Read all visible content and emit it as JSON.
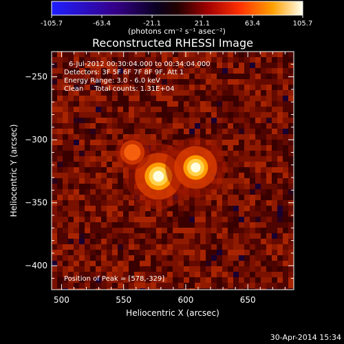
{
  "chart_data": {
    "type": "heatmap",
    "title": "Reconstructed RHESSI Image",
    "xlabel": "Heliocentric X (arcsec)",
    "ylabel": "Heliocentric Y (arcsec)",
    "xlim": [
      492,
      687
    ],
    "ylim": [
      -419,
      -230
    ],
    "xticks": [
      500,
      550,
      600,
      650
    ],
    "yticks": [
      -250,
      -300,
      -350,
      -400
    ],
    "annotations": [
      "6-Jul-2012 00:30:04.000 to 00:34:04.000",
      "Detectors: 3F 5F 6F 7F 8F 9F, Att 1",
      "Energy Range: 3.0 - 6.0 keV",
      "Clean     Total counts: 1.31E+04"
    ],
    "peak_label": "Position of Peak = [578,-329]",
    "peak": [
      578,
      -329
    ],
    "sources": [
      {
        "x": 578,
        "y": -329,
        "level": 105.7
      },
      {
        "x": 608,
        "y": -322,
        "level": 95
      },
      {
        "x": 557,
        "y": -310,
        "level": 45
      }
    ],
    "colorbar": {
      "range": [
        -105.7,
        105.7
      ],
      "ticks": [
        "-105.7",
        "-63.4",
        "-21.1",
        "21.1",
        "63.4",
        "105.7"
      ],
      "unit_label": "(photons cm⁻² s⁻¹ asec⁻²)",
      "colors": [
        "#1a1aff",
        "#2e0080",
        "#000000",
        "#8a0000",
        "#ff2a00",
        "#ffc000",
        "#ffffe0"
      ]
    },
    "footer_date": "30-Apr-2014 15:34"
  }
}
